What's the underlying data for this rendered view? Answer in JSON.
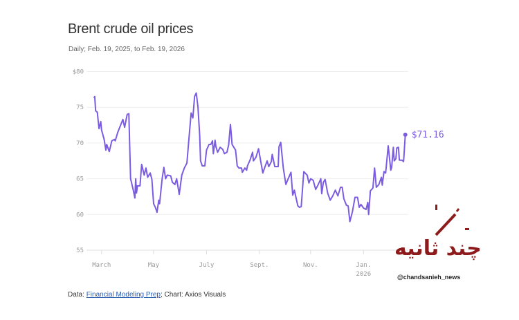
{
  "title": "Brent crude oil prices",
  "subtitle": "Daily; Feb. 19, 2025, to Feb. 19, 2026",
  "footer": {
    "prefix": "Data: ",
    "link": "Financial Modeling Prep",
    "suffix": "; Chart: Axios Visuals"
  },
  "watermark": {
    "text": "چند ثانیه",
    "handle": "@chandsanieh_news"
  },
  "colors": {
    "line": "#7b5ce0",
    "grid": "#eeeeee",
    "watermark": "#8e1b1b"
  },
  "chart_data": {
    "type": "line",
    "title": "Brent crude oil prices",
    "xlabel": "",
    "ylabel": "",
    "x_unit": "days since Feb. 19, 2025",
    "xlim": [
      0,
      365
    ],
    "ylim": [
      55,
      80
    ],
    "grid": true,
    "y_ticks": [
      {
        "v": 80,
        "label": "$80"
      },
      {
        "v": 75,
        "label": "75"
      },
      {
        "v": 70,
        "label": "70"
      },
      {
        "v": 65,
        "label": "65"
      },
      {
        "v": 60,
        "label": "60"
      },
      {
        "v": 55,
        "label": "55"
      }
    ],
    "x_ticks": [
      {
        "d": 9,
        "label": "March"
      },
      {
        "d": 70,
        "label": "May"
      },
      {
        "d": 132,
        "label": "July"
      },
      {
        "d": 194,
        "label": "Sept."
      },
      {
        "d": 254,
        "label": "Nov."
      },
      {
        "d": 316,
        "label": "Jan.",
        "sub": "2026"
      }
    ],
    "end_label": "$71.16",
    "series": [
      {
        "name": "Brent",
        "points": [
          [
            0,
            76.3
          ],
          [
            1,
            76.5
          ],
          [
            2,
            74.5
          ],
          [
            4,
            74.3
          ],
          [
            6,
            72
          ],
          [
            8,
            73
          ],
          [
            9,
            71.8
          ],
          [
            12,
            70.5
          ],
          [
            14,
            69
          ],
          [
            15,
            69.8
          ],
          [
            18,
            68.8
          ],
          [
            21,
            70.3
          ],
          [
            24,
            70.5
          ],
          [
            25,
            70.3
          ],
          [
            28,
            71.5
          ],
          [
            34,
            73.3
          ],
          [
            36,
            72.2
          ],
          [
            39,
            74
          ],
          [
            41,
            74.1
          ],
          [
            43,
            65
          ],
          [
            46,
            63.5
          ],
          [
            48,
            62.3
          ],
          [
            49,
            65
          ],
          [
            50,
            63
          ],
          [
            51,
            64
          ],
          [
            54,
            64
          ],
          [
            56,
            67
          ],
          [
            59,
            65.5
          ],
          [
            61,
            66.5
          ],
          [
            63,
            65.2
          ],
          [
            66,
            65.8
          ],
          [
            68,
            64.9
          ],
          [
            70,
            61.5
          ],
          [
            72,
            61
          ],
          [
            74,
            60.3
          ],
          [
            76,
            62
          ],
          [
            77,
            61.5
          ],
          [
            80,
            65
          ],
          [
            82,
            66.6
          ],
          [
            84,
            65
          ],
          [
            86,
            65.5
          ],
          [
            90,
            65.4
          ],
          [
            92,
            64.5
          ],
          [
            95,
            64.2
          ],
          [
            97,
            65
          ],
          [
            100,
            62.8
          ],
          [
            103,
            65.5
          ],
          [
            106,
            66.5
          ],
          [
            109,
            67.2
          ],
          [
            111,
            70
          ],
          [
            114,
            74.2
          ],
          [
            116,
            73.5
          ],
          [
            118,
            76.5
          ],
          [
            120,
            77
          ],
          [
            122,
            75
          ],
          [
            124,
            71
          ],
          [
            125,
            67.5
          ],
          [
            127,
            66.8
          ],
          [
            130,
            66.8
          ],
          [
            132,
            69
          ],
          [
            135,
            69.8
          ],
          [
            137,
            69.8
          ],
          [
            139,
            70.3
          ],
          [
            140,
            68.5
          ],
          [
            142,
            70.4
          ],
          [
            143,
            69.5
          ],
          [
            145,
            68.7
          ],
          [
            148,
            69.4
          ],
          [
            151,
            69.1
          ],
          [
            153,
            68.5
          ],
          [
            156,
            68.7
          ],
          [
            158,
            69.8
          ],
          [
            160,
            72.6
          ],
          [
            162,
            69.8
          ],
          [
            166,
            69
          ],
          [
            168,
            66.8
          ],
          [
            170,
            66.5
          ],
          [
            173,
            66.5
          ],
          [
            174,
            65.9
          ],
          [
            177,
            66.5
          ],
          [
            179,
            66.2
          ],
          [
            180,
            66.8
          ],
          [
            183,
            67.6
          ],
          [
            186,
            68.7
          ],
          [
            187,
            67.5
          ],
          [
            190,
            68
          ],
          [
            193,
            69.2
          ],
          [
            195,
            67.8
          ],
          [
            198,
            65.8
          ],
          [
            200,
            66.5
          ],
          [
            203,
            67.5
          ],
          [
            205,
            66.7
          ],
          [
            208,
            67.4
          ],
          [
            209,
            68.4
          ],
          [
            212,
            66.7
          ],
          [
            216,
            66.7
          ],
          [
            217,
            69.5
          ],
          [
            219,
            70.1
          ],
          [
            222,
            66.5
          ],
          [
            225,
            64.2
          ],
          [
            227,
            64.8
          ],
          [
            231,
            65.9
          ],
          [
            233,
            62.7
          ],
          [
            235,
            63.4
          ],
          [
            239,
            61.2
          ],
          [
            241,
            61
          ],
          [
            243,
            61.1
          ],
          [
            246,
            66
          ],
          [
            250,
            65.5
          ],
          [
            252,
            64.4
          ],
          [
            254,
            65
          ],
          [
            257,
            64.8
          ],
          [
            260,
            63.5
          ],
          [
            263,
            64.2
          ],
          [
            266,
            65
          ],
          [
            267,
            62.9
          ],
          [
            269,
            64.5
          ],
          [
            271,
            64.9
          ],
          [
            274,
            63
          ],
          [
            277,
            62
          ],
          [
            280,
            62.6
          ],
          [
            283,
            63.4
          ],
          [
            286,
            62.6
          ],
          [
            289,
            63.8
          ],
          [
            291,
            63.8
          ],
          [
            293,
            62.2
          ],
          [
            296,
            61.3
          ],
          [
            298,
            61.2
          ],
          [
            300,
            59
          ],
          [
            303,
            60.4
          ],
          [
            306,
            62.4
          ],
          [
            309,
            62.4
          ],
          [
            311,
            61
          ],
          [
            313,
            61.4
          ],
          [
            316,
            60.9
          ],
          [
            319,
            60.7
          ],
          [
            321,
            61.7
          ],
          [
            322,
            60
          ],
          [
            324,
            63.3
          ],
          [
            327,
            63.7
          ],
          [
            329,
            66.5
          ],
          [
            331,
            63.8
          ],
          [
            334,
            64.2
          ],
          [
            337,
            65.2
          ],
          [
            338,
            64.1
          ],
          [
            340,
            66
          ],
          [
            342,
            65.8
          ],
          [
            345,
            69.6
          ],
          [
            348,
            66.2
          ],
          [
            349,
            66.6
          ],
          [
            351,
            69.4
          ],
          [
            352,
            67.5
          ],
          [
            354,
            67.8
          ],
          [
            355,
            69.3
          ],
          [
            357,
            69.4
          ],
          [
            358,
            67.6
          ],
          [
            361,
            67.6
          ],
          [
            363,
            67.4
          ],
          [
            365,
            71.16
          ]
        ]
      }
    ]
  }
}
